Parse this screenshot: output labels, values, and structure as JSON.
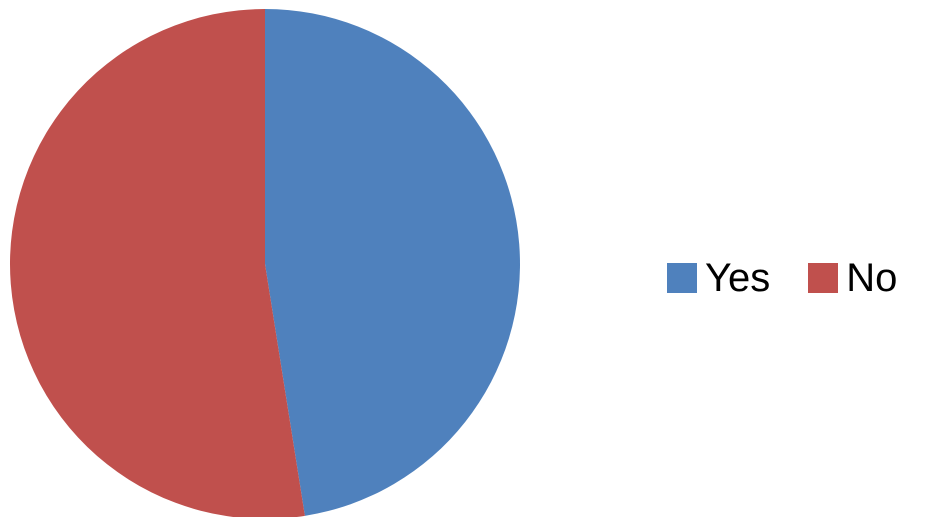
{
  "chart_data": {
    "type": "pie",
    "categories": [
      "Yes",
      "No"
    ],
    "values": [
      47.5,
      52.5
    ],
    "colors": [
      "#4F81BD",
      "#C0504D"
    ],
    "start_angle_deg": 0,
    "direction": "clockwise",
    "legend": {
      "placement": "right",
      "entries": [
        "Yes",
        "No"
      ]
    }
  }
}
